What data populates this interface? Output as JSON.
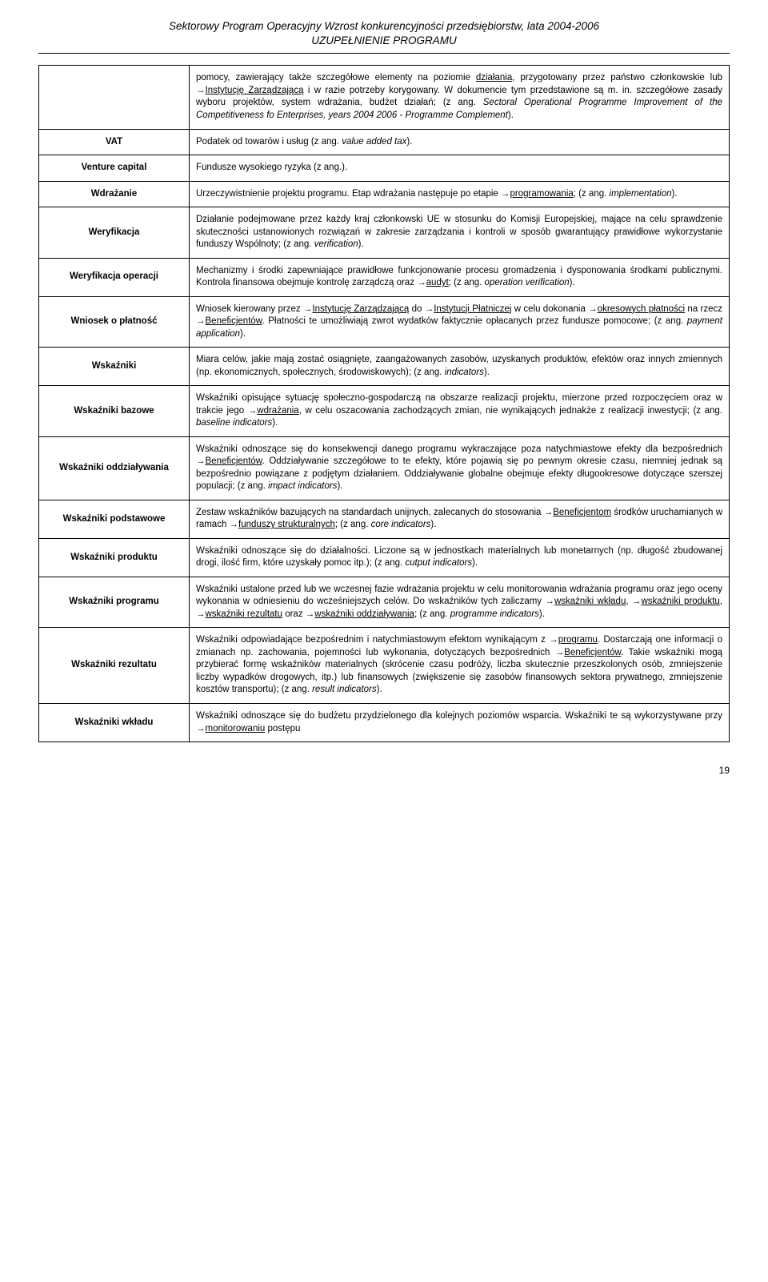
{
  "header": {
    "line1": "Sektorowy Program Operacyjny Wzrost konkurencyjności przedsiębiorstw, lata 2004-2006",
    "line2": "UZUPEŁNIENIE PROGRAMU"
  },
  "rows": [
    {
      "term": "",
      "def_html": "pomocy, zawierający także szczegółowe elementy na poziomie <span class='u'>działania</span>, przygotowany przez państwo członkowskie lub →<span class='u'>Instytucję Zarządzającą</span> i w razie potrzeby korygowany. W dokumencie tym przedstawione są m. in. szczegółowe zasady wyboru projektów, system wdrażania, budżet działań; (z ang. <span class='it'>Sectoral Operational Programme Improvement of the Competitiveness fo Enterprises, years 2004 2006 - Programme Complement</span>)."
    },
    {
      "term": "VAT",
      "def_html": "Podatek od towarów i usług (z ang. <span class='it'>value added tax</span>)."
    },
    {
      "term": "Venture capital",
      "def_html": "Fundusze wysokiego ryzyka (z ang.)."
    },
    {
      "term": "Wdrażanie",
      "def_html": "Urzeczywistnienie projektu programu. Etap wdrażania następuje po etapie →<span class='u'>programowania</span>; (z ang. <span class='it'>implementation</span>)."
    },
    {
      "term": "Weryfikacja",
      "def_html": "Działanie podejmowane przez każdy kraj członkowski UE w stosunku do Komisji Europejskiej, mające na celu sprawdzenie skuteczności ustanowionych rozwiązań w zakresie zarządzania i kontroli w sposób gwarantujący prawidłowe wykorzystanie funduszy Wspólnoty; (z ang. <span class='it'>verification</span>)."
    },
    {
      "term": "Weryfikacja operacji",
      "def_html": "Mechanizmy i środki zapewniające prawidłowe funkcjonowanie procesu gromadzenia i dysponowania środkami publicznymi. Kontrola finansowa obejmuje kontrolę zarządczą oraz →<span class='u'>audyt</span>; (z ang. <span class='it'>operation verification</span>)."
    },
    {
      "term": "Wniosek o płatność",
      "def_html": "Wniosek kierowany przez →<span class='u'>Instytucję Zarządzającą</span> do →<span class='u'>Instytucji Płatniczej</span> w celu dokonania →<span class='u'>okresowych płatności</span> na rzecz →<span class='u'>Beneficjentów</span>. Płatności te umożliwiają zwrot wydatków faktycznie opłacanych przez fundusze pomocowe; (z ang. <span class='it'>payment application</span>)."
    },
    {
      "term": "Wskaźniki",
      "def_html": "Miara celów, jakie mają zostać osiągnięte, zaangażowanych zasobów, uzyskanych produktów, efektów oraz innych zmiennych (np. ekonomicznych, społecznych, środowiskowych); (z ang. <span class='it'>indicators</span>)."
    },
    {
      "term": "Wskaźniki bazowe",
      "def_html": "Wskaźniki opisujące sytuację społeczno-gospodarczą na obszarze realizacji projektu, mierzone przed rozpoczęciem oraz w trakcie jego →<span class='u'>wdrażania</span>, w celu oszacowania zachodzących zmian, nie wynikających jednakże z realizacji inwestycji; (z ang. <span class='it'>baseline indicators</span>)."
    },
    {
      "term": "Wskaźniki oddziaływania",
      "def_html": "Wskaźniki odnoszące się do konsekwencji danego programu wykraczające poza natychmiastowe efekty dla bezpośrednich →<span class='u'>Beneficjentów</span>. Oddziaływanie szczegółowe to te efekty, które pojawią się po pewnym okresie czasu, niemniej jednak są bezpośrednio powiązane z podjętym działaniem. Oddziaływanie globalne obejmuje efekty długookresowe dotyczące szerszej populacji; (z ang. <span class='it'>impact indicators</span>)."
    },
    {
      "term": "Wskaźniki podstawowe",
      "def_html": "Zestaw wskaźników bazujących na standardach unijnych, zalecanych do stosowania →<span class='u'>Beneficjentom</span> środków uruchamianych w ramach →<span class='u'>funduszy strukturalnych</span>; (z ang. <span class='it'>core indicators</span>)."
    },
    {
      "term": "Wskaźniki produktu",
      "def_html": "Wskaźniki odnoszące się do działalności. Liczone są w jednostkach materialnych lub monetarnych (np. długość zbudowanej drogi, ilość firm, które uzyskały pomoc itp.); (z ang. <span class='it'>cutput indicators</span>)."
    },
    {
      "term": "Wskaźniki programu",
      "def_html": "Wskaźniki ustalone przed lub we wczesnej fazie wdrażania projektu w celu monitorowania wdrażania programu oraz jego oceny wykonania w odniesieniu do wcześniejszych celów. Do wskaźników tych zaliczamy →<span class='u'>wskaźniki wkładu</span>, →<span class='u'>wskaźniki produktu</span>, →<span class='u'>wskaźniki rezultatu</span> oraz →<span class='u'>wskaźniki oddziaływania</span>; (z ang. <span class='it'>programme indicators</span>)."
    },
    {
      "term": "Wskaźniki rezultatu",
      "def_html": "Wskaźniki odpowiadające bezpośrednim i natychmiastowym efektom wynikającym z →<span class='u'>programu</span>. Dostarczają one informacji o zmianach np. zachowania, pojemności lub wykonania, dotyczących bezpośrednich →<span class='u'>Beneficjentów</span>. Takie wskaźniki mogą przybierać formę wskaźników materialnych (skrócenie czasu podróży, liczba skutecznie przeszkolonych osób, zmniejszenie liczby wypadków drogowych, itp.) lub finansowych (zwiększenie się zasobów finansowych sektora prywatnego, zmniejszenie kosztów transportu); (z ang. <span class='it'>result indicators</span>)."
    },
    {
      "term": "Wskaźniki wkładu",
      "def_html": "Wskaźniki odnoszące się do budżetu przydzielonego dla kolejnych poziomów wsparcia. Wskaźniki te są wykorzystywane przy →<span class='u'>monitorowaniu</span> postępu"
    }
  ],
  "page_number": "19"
}
